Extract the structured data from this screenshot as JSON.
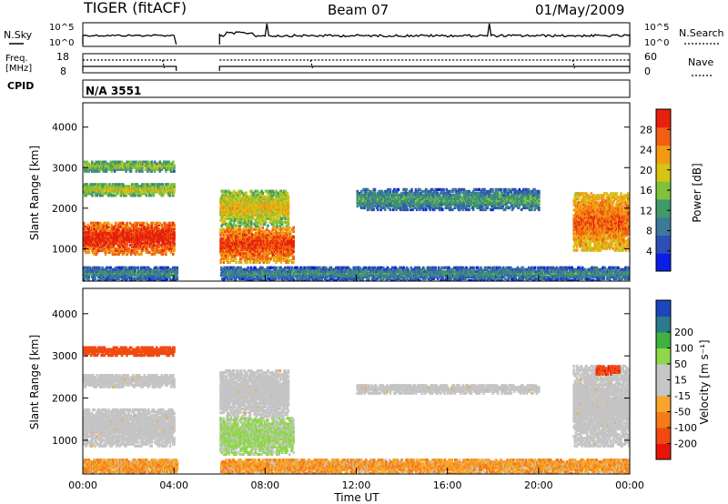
{
  "header": {
    "station": "TIGER (fitACF)",
    "beam": "Beam 07",
    "date": "01/May/2009"
  },
  "top_strip": {
    "left_label": "N.Sky",
    "left_ticks": [
      "10^5",
      "10^0"
    ],
    "right_ticks": [
      "10^5",
      "10^0"
    ],
    "right_label": "N.Search"
  },
  "freq_strip": {
    "left_label_1": "Freq.",
    "left_label_2": "[MHz]",
    "left_ticks": [
      "18",
      "8"
    ],
    "right_ticks": [
      "60",
      "0"
    ],
    "right_label": "Nave"
  },
  "cpid": {
    "label": "CPID",
    "value": "N/A 3551"
  },
  "colors": {
    "power_scale": [
      "#0a1ee6",
      "#2e4fb6",
      "#3c7a9a",
      "#3f9a6a",
      "#7fc23a",
      "#d6c414",
      "#f29a12",
      "#f15f12",
      "#e6200c"
    ],
    "velocity_scale": [
      "#e6140a",
      "#f04a12",
      "#f47a1a",
      "#f6a62a",
      "#c6c6c6",
      "#c6c6c6",
      "#8ed64a",
      "#40b040",
      "#2a7a8a",
      "#1a46c0"
    ],
    "groundscatter": "#c4c4c4"
  },
  "chart_data": [
    {
      "type": "heatmap",
      "quantity": "Power",
      "xlabel": "",
      "ylabel": "Slant Range [km]",
      "x_ticks": [
        "00:00",
        "04:00",
        "08:00",
        "12:00",
        "16:00",
        "20:00",
        "00:00"
      ],
      "x_range_hours": [
        0,
        24
      ],
      "y_range_km": [
        200,
        4600
      ],
      "y_ticks": [
        1000,
        2000,
        3000,
        4000
      ],
      "colorbar": {
        "label": "Power [dB]",
        "range": [
          0,
          32
        ],
        "ticks": [
          4,
          8,
          12,
          16,
          20,
          24,
          28
        ]
      },
      "data_gaps_hours": [
        [
          4.1,
          6.0
        ]
      ],
      "echo_regions": [
        {
          "t_start": 0.0,
          "t_end": 4.0,
          "r_min": 900,
          "r_max": 1700,
          "power": 28
        },
        {
          "t_start": 0.0,
          "t_end": 4.0,
          "r_min": 2350,
          "r_max": 2650,
          "power": 16
        },
        {
          "t_start": 0.0,
          "t_end": 4.0,
          "r_min": 2950,
          "r_max": 3200,
          "power": 14
        },
        {
          "t_start": 6.0,
          "t_end": 9.2,
          "r_min": 700,
          "r_max": 1600,
          "power": 26
        },
        {
          "t_start": 6.0,
          "t_end": 9.0,
          "r_min": 1600,
          "r_max": 2500,
          "power": 18
        },
        {
          "t_start": 12.0,
          "t_end": 20.0,
          "r_min": 2000,
          "r_max": 2500,
          "power": 10
        },
        {
          "t_start": 0.0,
          "t_end": 24.0,
          "r_min": 250,
          "r_max": 600,
          "power": 8
        },
        {
          "t_start": 21.5,
          "t_end": 24.0,
          "r_min": 1000,
          "r_max": 2400,
          "power": 24
        }
      ]
    },
    {
      "type": "heatmap",
      "quantity": "Velocity",
      "xlabel": "Time UT",
      "ylabel": "Slant Range [km]",
      "x_ticks": [
        "00:00",
        "04:00",
        "08:00",
        "12:00",
        "16:00",
        "20:00",
        "00:00"
      ],
      "x_range_hours": [
        0,
        24
      ],
      "y_range_km": [
        200,
        4600
      ],
      "y_ticks": [
        1000,
        2000,
        3000,
        4000
      ],
      "colorbar": {
        "label": "Velocity [m s⁻¹]",
        "ticks": [
          -200,
          -100,
          -50,
          -15,
          15,
          50,
          100,
          200
        ]
      },
      "data_gaps_hours": [
        [
          4.1,
          6.0
        ]
      ],
      "echo_regions": [
        {
          "t_start": 0.0,
          "t_end": 4.0,
          "r_min": 900,
          "r_max": 1800,
          "velocity": 0,
          "ground_scatter": true
        },
        {
          "t_start": 0.0,
          "t_end": 4.0,
          "r_min": 2300,
          "r_max": 2600,
          "velocity": 0,
          "ground_scatter": true
        },
        {
          "t_start": 0.0,
          "t_end": 4.0,
          "r_min": 3050,
          "r_max": 3250,
          "velocity": -150
        },
        {
          "t_start": 6.0,
          "t_end": 9.2,
          "r_min": 700,
          "r_max": 1600,
          "velocity": 60
        },
        {
          "t_start": 6.0,
          "t_end": 9.0,
          "r_min": 1600,
          "r_max": 2700,
          "velocity": 0,
          "ground_scatter": true
        },
        {
          "t_start": 12.0,
          "t_end": 20.0,
          "r_min": 2150,
          "r_max": 2350,
          "velocity": 0,
          "ground_scatter": true
        },
        {
          "t_start": 0.0,
          "t_end": 24.0,
          "r_min": 250,
          "r_max": 600,
          "velocity": -40
        },
        {
          "t_start": 21.5,
          "t_end": 24.0,
          "r_min": 900,
          "r_max": 2800,
          "velocity": 0,
          "ground_scatter": true
        },
        {
          "t_start": 22.5,
          "t_end": 23.5,
          "r_min": 2600,
          "r_max": 2800,
          "velocity": -180
        }
      ]
    }
  ]
}
